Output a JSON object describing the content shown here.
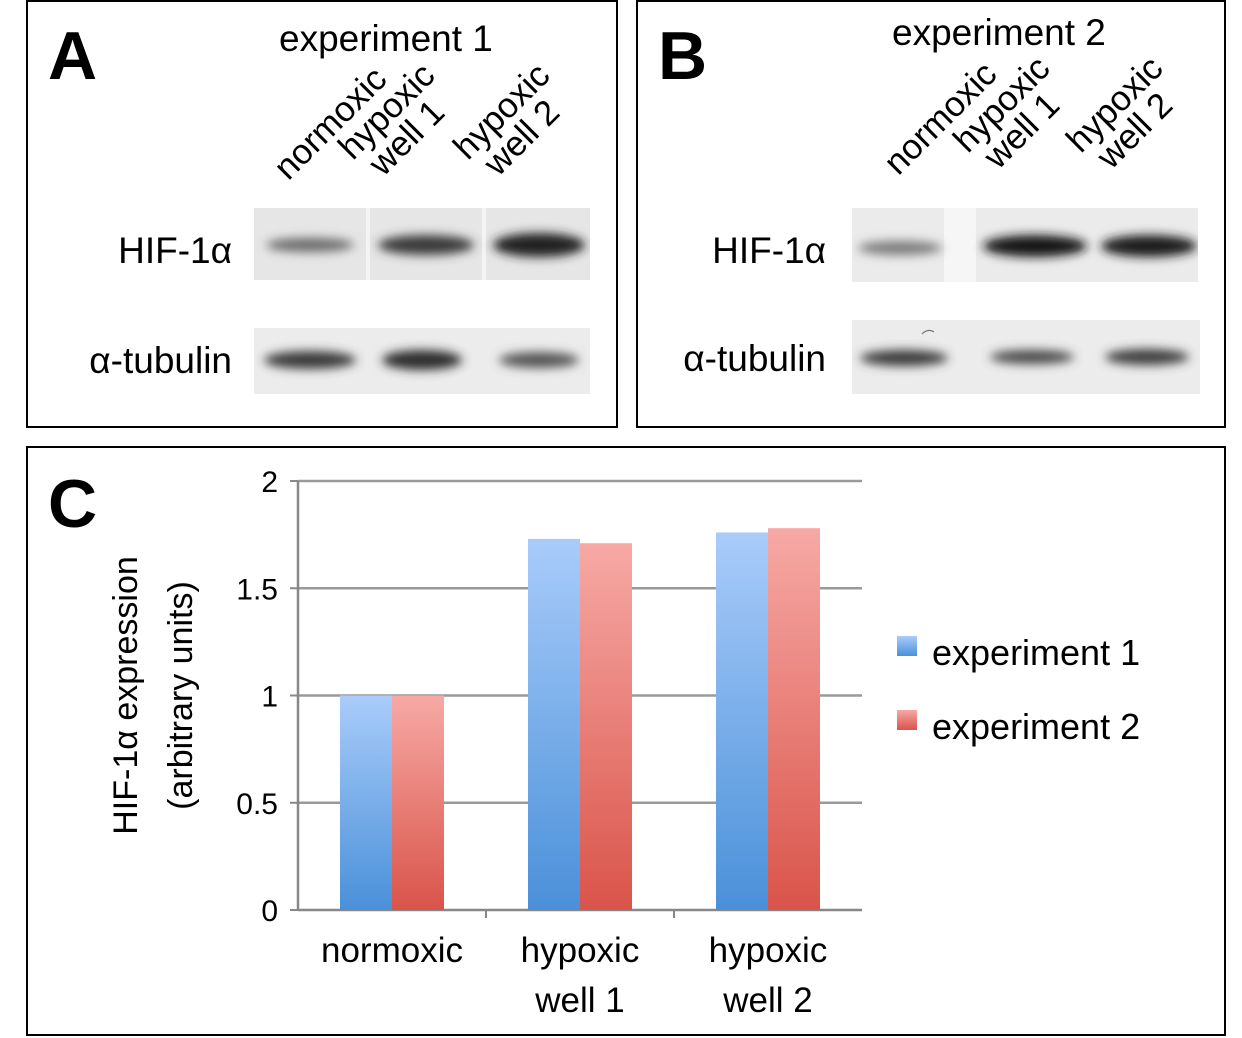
{
  "panelA": {
    "letter": "A",
    "title": "experiment 1",
    "lanes": [
      {
        "line1": "normoxic",
        "line2": ""
      },
      {
        "line1": "hypoxic",
        "line2": "well 1"
      },
      {
        "line1": "hypoxic",
        "line2": "well 2"
      }
    ],
    "rows": [
      "HIF-1α",
      "α-tubulin"
    ]
  },
  "panelB": {
    "letter": "B",
    "title": "experiment 2",
    "lanes": [
      {
        "line1": "normoxic",
        "line2": ""
      },
      {
        "line1": "hypoxic",
        "line2": "well 1"
      },
      {
        "line1": "hypoxic",
        "line2": "well 2"
      }
    ],
    "rows": [
      "HIF-1α",
      "α-tubulin"
    ]
  },
  "panelC": {
    "letter": "C"
  },
  "chart_data": {
    "type": "bar",
    "categories": [
      [
        "normoxic"
      ],
      [
        "hypoxic",
        "well 1"
      ],
      [
        "hypoxic",
        "well 2"
      ]
    ],
    "series": [
      {
        "name": "experiment 1",
        "values": [
          1.0,
          1.73,
          1.76
        ],
        "color_top": "#a9ccfa",
        "color_bottom": "#4a90d9"
      },
      {
        "name": "experiment 2",
        "values": [
          1.0,
          1.71,
          1.78
        ],
        "color_top": "#f7a9a5",
        "color_bottom": "#d9544a"
      }
    ],
    "ylabel_line1": "HIF-1α expression",
    "ylabel_line2": "(arbitrary units)",
    "ylim": [
      0,
      2
    ],
    "yticks": [
      "0",
      "0.5",
      "1",
      "1.5",
      "2"
    ],
    "grid": true,
    "legend": "right"
  }
}
